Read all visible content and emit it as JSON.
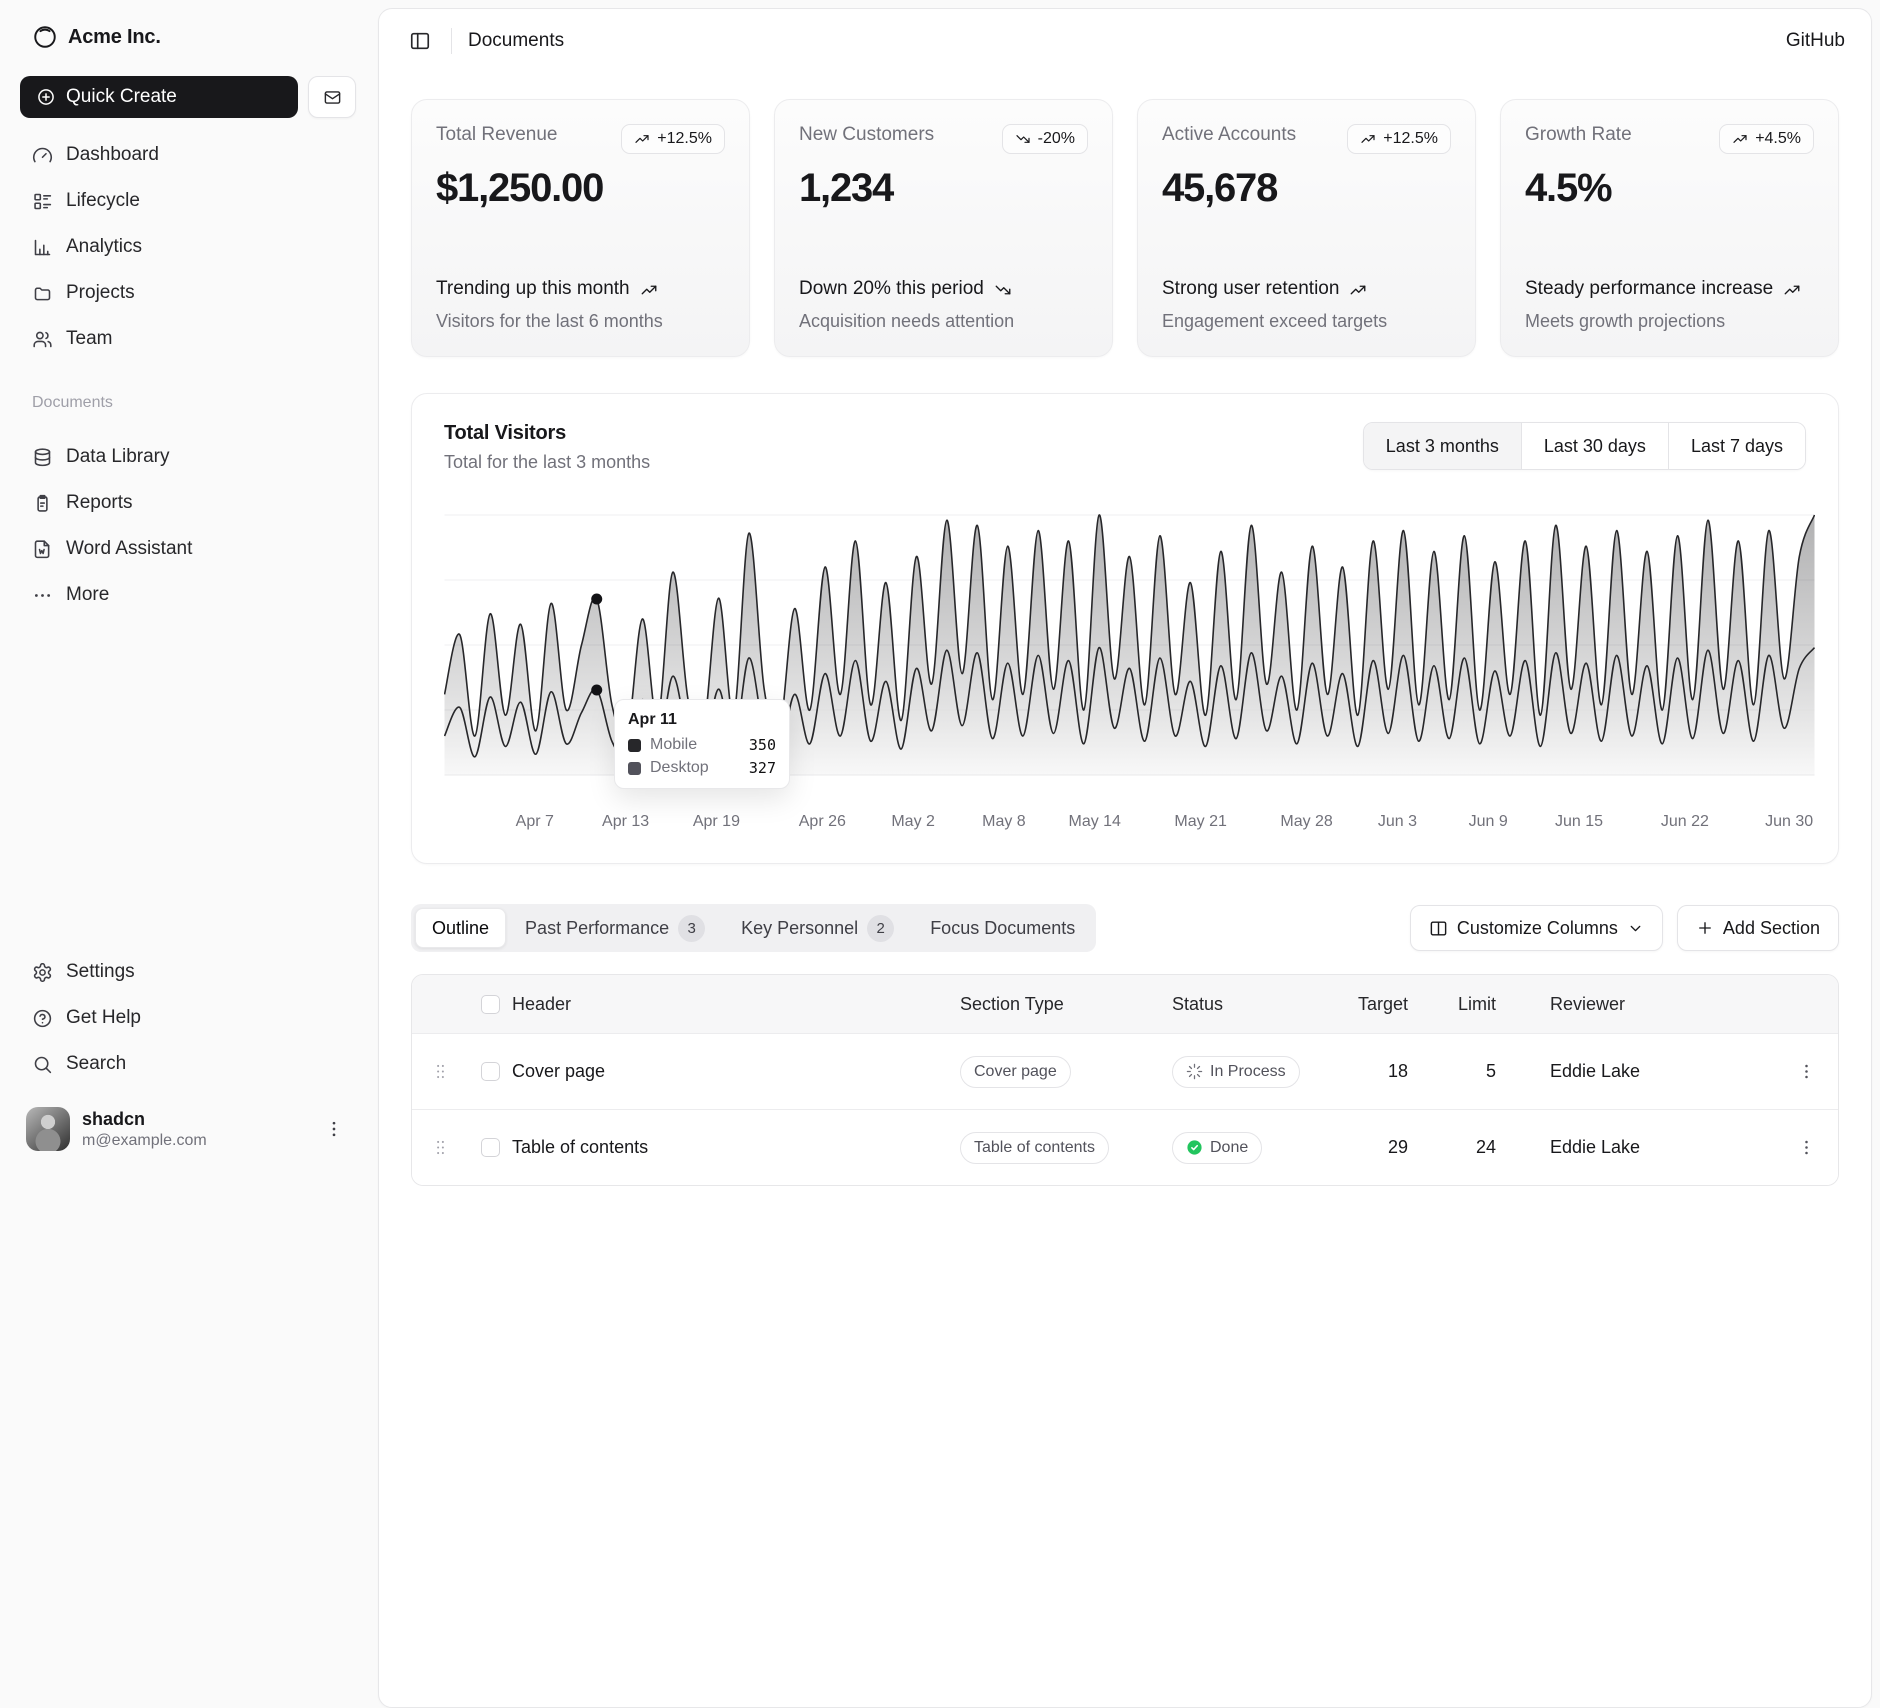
{
  "brand": {
    "name": "Acme Inc."
  },
  "sidebar": {
    "quick_create": "Quick Create",
    "nav": [
      {
        "label": "Dashboard",
        "icon": "gauge"
      },
      {
        "label": "Lifecycle",
        "icon": "list"
      },
      {
        "label": "Analytics",
        "icon": "chart"
      },
      {
        "label": "Projects",
        "icon": "folder"
      },
      {
        "label": "Team",
        "icon": "users"
      }
    ],
    "documents_label": "Documents",
    "documents_nav": [
      {
        "label": "Data Library",
        "icon": "db"
      },
      {
        "label": "Reports",
        "icon": "clipboard"
      },
      {
        "label": "Word Assistant",
        "icon": "file-w"
      },
      {
        "label": "More",
        "icon": "dots"
      }
    ],
    "footer_nav": [
      {
        "label": "Settings",
        "icon": "gear"
      },
      {
        "label": "Get Help",
        "icon": "help"
      },
      {
        "label": "Search",
        "icon": "search"
      }
    ],
    "user": {
      "name": "shadcn",
      "email": "m@example.com"
    }
  },
  "header": {
    "title": "Documents",
    "github_label": "GitHub"
  },
  "cards": [
    {
      "title": "Total Revenue",
      "badge": "+12.5%",
      "trend": "up",
      "value": "$1,250.00",
      "line1": "Trending up this month",
      "line2": "Visitors for the last 6 months"
    },
    {
      "title": "New Customers",
      "badge": "-20%",
      "trend": "down",
      "value": "1,234",
      "line1": "Down 20% this period",
      "line2": "Acquisition needs attention"
    },
    {
      "title": "Active Accounts",
      "badge": "+12.5%",
      "trend": "up",
      "value": "45,678",
      "line1": "Strong user retention",
      "line2": "Engagement exceed targets"
    },
    {
      "title": "Growth Rate",
      "badge": "+4.5%",
      "trend": "up",
      "value": "4.5%",
      "line1": "Steady performance increase",
      "line2": "Meets growth projections"
    }
  ],
  "chart_card": {
    "title": "Total Visitors",
    "subtitle": "Total for the last 3 months",
    "ranges": [
      {
        "label": "Last 3 months",
        "active": true
      },
      {
        "label": "Last 30 days",
        "active": false
      },
      {
        "label": "Last 7 days",
        "active": false
      }
    ],
    "tooltip": {
      "label": "Apr 11",
      "rows": [
        {
          "name": "Mobile",
          "value": "350",
          "color": "#27272a"
        },
        {
          "name": "Desktop",
          "value": "327",
          "color": "#52525b"
        }
      ]
    }
  },
  "chart_data": {
    "type": "area",
    "stacked": true,
    "title": "Total Visitors",
    "x_range": [
      "Apr 1",
      "Jun 30"
    ],
    "ylim": [
      0,
      1000
    ],
    "grid": "horizontal",
    "ticks": [
      {
        "label": "Apr 7",
        "day": 6
      },
      {
        "label": "Apr 13",
        "day": 12
      },
      {
        "label": "Apr 19",
        "day": 18
      },
      {
        "label": "Apr 26",
        "day": 25
      },
      {
        "label": "May 2",
        "day": 31
      },
      {
        "label": "May 8",
        "day": 37
      },
      {
        "label": "May 14",
        "day": 43
      },
      {
        "label": "May 21",
        "day": 50
      },
      {
        "label": "May 28",
        "day": 57
      },
      {
        "label": "Jun 3",
        "day": 63
      },
      {
        "label": "Jun 9",
        "day": 69
      },
      {
        "label": "Jun 15",
        "day": 75
      },
      {
        "label": "Jun 22",
        "day": 82
      },
      {
        "label": "Jun 30",
        "day": 90
      }
    ],
    "series": [
      {
        "name": "Desktop",
        "values": [
          150,
          260,
          70,
          300,
          110,
          280,
          80,
          320,
          120,
          240,
          327,
          130,
          70,
          290,
          100,
          380,
          140,
          80,
          330,
          110,
          450,
          160,
          80,
          310,
          120,
          390,
          150,
          440,
          130,
          360,
          100,
          410,
          170,
          480,
          190,
          470,
          140,
          430,
          150,
          460,
          160,
          440,
          120,
          490,
          180,
          410,
          130,
          450,
          150,
          360,
          110,
          420,
          140,
          470,
          170,
          380,
          120,
          430,
          150,
          390,
          110,
          440,
          160,
          460,
          130,
          420,
          140,
          450,
          120,
          400,
          150,
          440,
          110,
          470,
          160,
          430,
          130,
          460,
          150,
          420,
          120,
          450,
          140,
          480,
          160,
          440,
          130,
          460,
          180,
          410,
          490
        ]
      },
      {
        "name": "Mobile",
        "values": [
          160,
          280,
          80,
          320,
          120,
          300,
          90,
          340,
          130,
          260,
          350,
          140,
          80,
          310,
          110,
          400,
          150,
          90,
          350,
          120,
          480,
          170,
          90,
          330,
          130,
          410,
          160,
          460,
          140,
          380,
          110,
          430,
          180,
          500,
          200,
          490,
          150,
          450,
          160,
          480,
          170,
          460,
          130,
          510,
          190,
          430,
          140,
          470,
          160,
          380,
          120,
          440,
          150,
          490,
          180,
          400,
          130,
          450,
          160,
          410,
          120,
          460,
          170,
          480,
          140,
          440,
          150,
          470,
          130,
          420,
          160,
          460,
          120,
          490,
          170,
          450,
          140,
          480,
          160,
          440,
          130,
          470,
          150,
          500,
          170,
          460,
          140,
          480,
          190,
          430,
          510
        ]
      }
    ],
    "highlight": {
      "day": 10,
      "label": "Apr 11",
      "mobile": 350,
      "desktop": 327
    }
  },
  "tabs": [
    {
      "label": "Outline",
      "active": true
    },
    {
      "label": "Past Performance",
      "count": "3"
    },
    {
      "label": "Key Personnel",
      "count": "2"
    },
    {
      "label": "Focus Documents"
    }
  ],
  "actions": {
    "customize": "Customize Columns",
    "add_section": "Add Section"
  },
  "table": {
    "columns": [
      "Header",
      "Section Type",
      "Status",
      "Target",
      "Limit",
      "Reviewer"
    ],
    "rows": [
      {
        "header": "Cover page",
        "type": "Cover page",
        "status": "In Process",
        "status_icon": "loader",
        "target": "18",
        "limit": "5",
        "reviewer": "Eddie Lake"
      },
      {
        "header": "Table of contents",
        "type": "Table of contents",
        "status": "Done",
        "status_icon": "done",
        "target": "29",
        "limit": "24",
        "reviewer": "Eddie Lake"
      }
    ]
  },
  "colors": {
    "accent_dark": "#18181b",
    "muted": "#71717a",
    "border": "#e4e4e7",
    "done_green": "#22c55e"
  }
}
